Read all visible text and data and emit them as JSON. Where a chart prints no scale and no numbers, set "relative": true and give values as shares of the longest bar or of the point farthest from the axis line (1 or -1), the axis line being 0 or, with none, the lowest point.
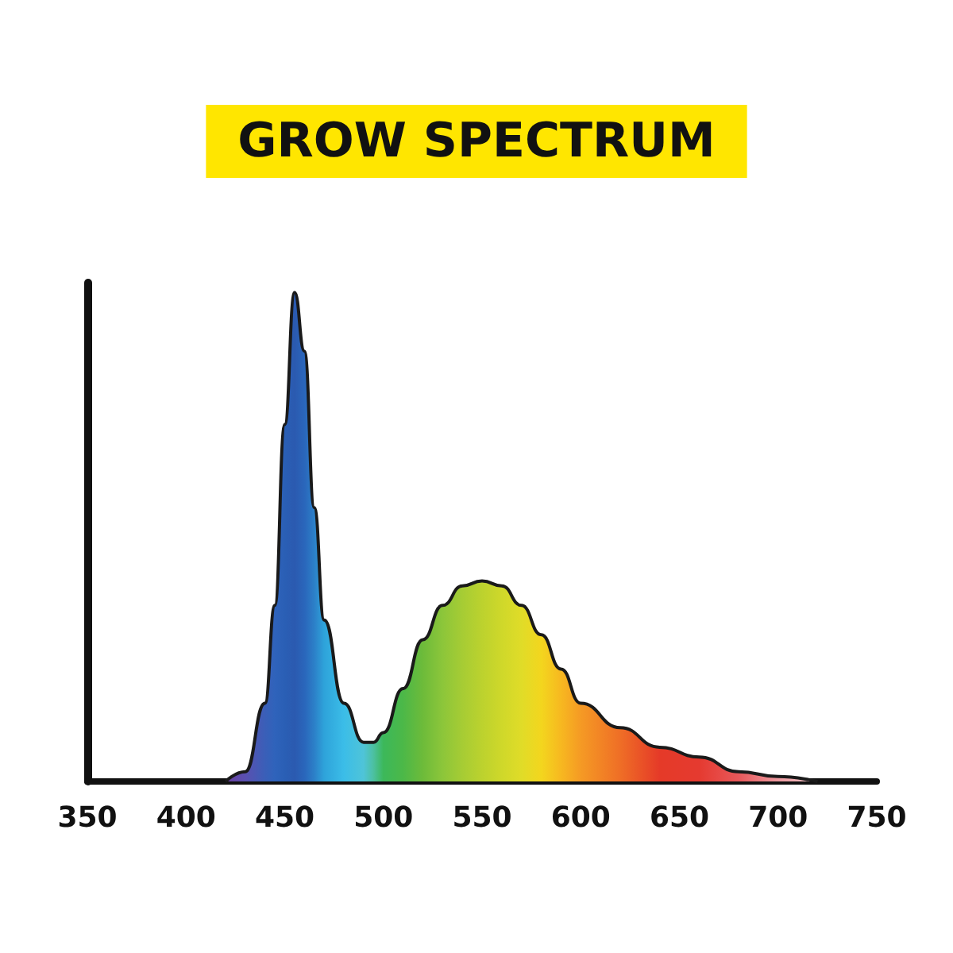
{
  "chart_data": {
    "type": "area",
    "title": "GROW SPECTRUM",
    "relative": true,
    "xlim": [
      350,
      750
    ],
    "xticks": [
      350,
      400,
      450,
      500,
      550,
      600,
      650,
      700,
      750
    ],
    "grid": false,
    "marker": "none",
    "series": [
      {
        "color": "#1a1a1a",
        "x": [
          420,
          430,
          440,
          445,
          450,
          455,
          460,
          465,
          470,
          480,
          490,
          495,
          500,
          510,
          520,
          530,
          540,
          550,
          560,
          570,
          580,
          590,
          600,
          620,
          640,
          660,
          680,
          700,
          720
        ],
        "values": [
          0,
          0.02,
          0.16,
          0.36,
          0.73,
          1,
          0.88,
          0.56,
          0.33,
          0.16,
          0.08,
          0.08,
          0.1,
          0.19,
          0.29,
          0.36,
          0.4,
          0.41,
          0.4,
          0.36,
          0.3,
          0.23,
          0.16,
          0.11,
          0.07,
          0.05,
          0.02,
          0.01,
          0
        ],
        "colors": [
          "#6a3fa0",
          "#5a50b0",
          "#3a5fb8",
          "#2f63bb",
          "#2a5fb5",
          "#2b5ab0",
          "#2a66bb",
          "#2c80c8",
          "#2ea3da",
          "#3bbde8",
          "#4fc4d8",
          "#4cc0a0",
          "#3cb85a",
          "#4cb848",
          "#6dbb3a",
          "#8cc63a",
          "#a6cc34",
          "#bcd22e",
          "#cfd82a",
          "#e0dc28",
          "#f3d61e",
          "#f7b820",
          "#f59a24",
          "#ef6e26",
          "#e53a28",
          "#e53a30",
          "#e8585a",
          "#ee9aa0",
          "#f4c8cc"
        ]
      }
    ]
  }
}
